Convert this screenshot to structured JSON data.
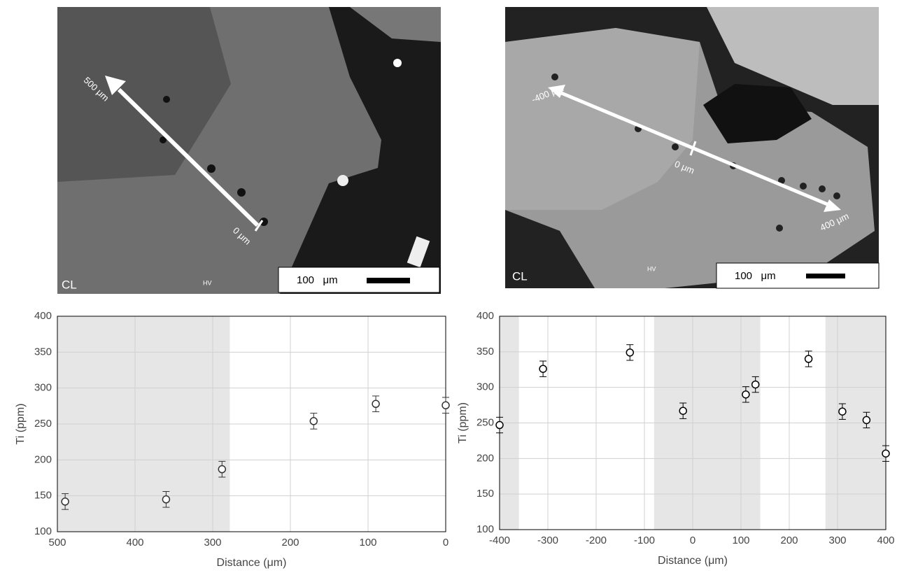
{
  "images": [
    {
      "label": "CL",
      "marker": "HV",
      "scale_bar": "100   μm",
      "arrow_labels": [
        "500 μm",
        "0 μm"
      ]
    },
    {
      "label": "CL",
      "marker": "HV",
      "scale_bar": "100   μm",
      "arrow_labels": [
        "-400 μm",
        "0 μm",
        "400 μm"
      ]
    }
  ],
  "chart_data": [
    {
      "type": "scatter",
      "xlabel": "Distance (μm)",
      "ylabel": "Ti (ppm)",
      "x": [
        490,
        360,
        288,
        170,
        90,
        0
      ],
      "values": [
        142,
        145,
        187,
        254,
        278,
        276
      ],
      "errors": [
        11,
        11,
        11,
        11,
        11,
        11
      ],
      "color": "#333333",
      "shaded": [
        [
          500,
          278
        ]
      ],
      "shade_color": "#e6e6e6",
      "xlim": [
        500,
        0
      ],
      "xticks": [
        500,
        400,
        300,
        200,
        100,
        0
      ],
      "ylim": [
        100,
        400
      ],
      "yticks": [
        100,
        150,
        200,
        250,
        300,
        350,
        400
      ],
      "grid": true
    },
    {
      "type": "scatter",
      "xlabel": "Distance (μm)",
      "ylabel": "Ti (ppm)",
      "x": [
        -400,
        -310,
        -130,
        -20,
        110,
        130,
        240,
        310,
        360,
        400
      ],
      "values": [
        247,
        326,
        349,
        267,
        290,
        304,
        340,
        266,
        254,
        207
      ],
      "errors": [
        11,
        11,
        11,
        11,
        11,
        11,
        11,
        11,
        11,
        11
      ],
      "color": "#000000",
      "shaded": [
        [
          -400,
          -360
        ],
        [
          -80,
          140
        ],
        [
          275,
          400
        ]
      ],
      "shade_color": "#e6e6e6",
      "xlim": [
        -400,
        400
      ],
      "xticks": [
        -400,
        -300,
        -200,
        -100,
        0,
        100,
        200,
        300,
        400
      ],
      "ylim": [
        100,
        400
      ],
      "yticks": [
        100,
        150,
        200,
        250,
        300,
        350,
        400
      ],
      "grid": true
    }
  ]
}
